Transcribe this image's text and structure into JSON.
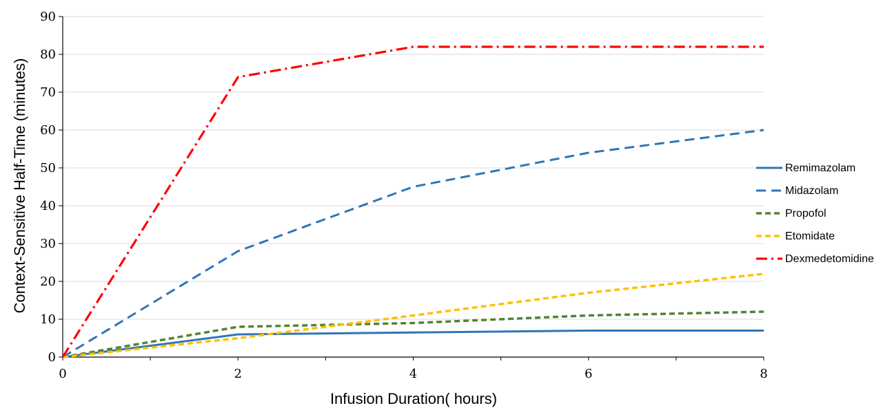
{
  "chart_data": {
    "type": "line",
    "xlabel": "Infusion Duration( hours)",
    "ylabel": "Context-Sensitive Half-Time (minutes)",
    "xlim": [
      0,
      8
    ],
    "ylim": [
      0,
      90
    ],
    "x_ticks": [
      0,
      2,
      4,
      6,
      8
    ],
    "y_ticks": [
      0,
      10,
      20,
      30,
      40,
      50,
      60,
      70,
      80,
      90
    ],
    "grid": "horizontal",
    "legend_position": "right",
    "series": [
      {
        "name": "Remimazolam",
        "color": "#2E75B6",
        "style": "solid",
        "x": [
          0,
          2,
          4,
          6,
          8
        ],
        "y": [
          0,
          6,
          6.5,
          7,
          7
        ]
      },
      {
        "name": "Midazolam",
        "color": "#2E75B6",
        "style": "dash",
        "x": [
          0,
          2,
          4,
          6,
          8
        ],
        "y": [
          0,
          28,
          45,
          54,
          60
        ]
      },
      {
        "name": "Propofol",
        "color": "#548235",
        "style": "shortdash",
        "x": [
          0,
          2,
          4,
          6,
          8
        ],
        "y": [
          0,
          8,
          9,
          11,
          12
        ]
      },
      {
        "name": "Etomidate",
        "color": "#FFC000",
        "style": "shortdash",
        "x": [
          0,
          2,
          4,
          6,
          8
        ],
        "y": [
          0,
          5,
          11,
          17,
          22
        ]
      },
      {
        "name": "Dexmedetomidine",
        "color": "#FF0000",
        "style": "dashdot",
        "x": [
          0,
          2,
          4,
          6,
          8
        ],
        "y": [
          0,
          74,
          82,
          82,
          82
        ]
      }
    ]
  }
}
